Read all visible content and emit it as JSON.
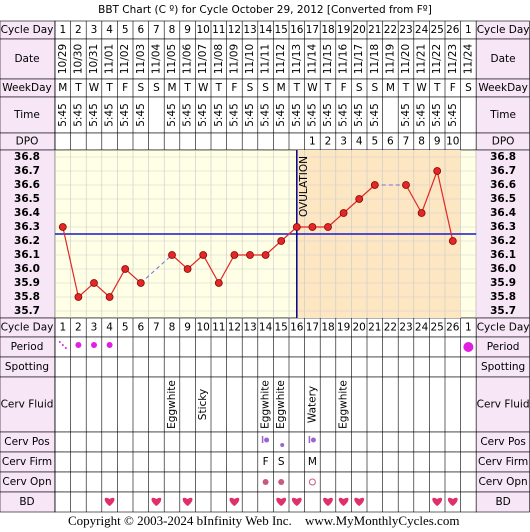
{
  "title": "BBT Chart (C º) for Cycle October 29, 2012  [Converted from Fº]",
  "row_labels": {
    "cycle_day": "Cycle Day",
    "date": "Date",
    "weekday": "WeekDay",
    "time": "Time",
    "dpo": "DPO",
    "period": "Period",
    "spotting": "Spotting",
    "cerv_fluid": "Cerv Fluid",
    "cerv_pos": "Cerv Pos",
    "cerv_firm": "Cerv Firm",
    "cerv_opn": "Cerv Opn",
    "bd": "BD"
  },
  "cycle_days": [
    1,
    2,
    3,
    4,
    5,
    6,
    7,
    8,
    9,
    10,
    11,
    12,
    13,
    14,
    15,
    16,
    17,
    18,
    19,
    20,
    21,
    22,
    23,
    24,
    25,
    26,
    1
  ],
  "dates": [
    "10/29",
    "10/30",
    "10/31",
    "11/01",
    "11/02",
    "11/03",
    "11/04",
    "11/05",
    "11/06",
    "11/07",
    "11/08",
    "11/09",
    "11/10",
    "11/11",
    "11/12",
    "11/13",
    "11/14",
    "11/15",
    "11/16",
    "11/17",
    "11/18",
    "11/19",
    "11/20",
    "11/21",
    "11/22",
    "11/23",
    "11/24"
  ],
  "weekdays": [
    "M",
    "T",
    "W",
    "T",
    "F",
    "S",
    "S",
    "M",
    "T",
    "W",
    "T",
    "F",
    "S",
    "S",
    "M",
    "T",
    "W",
    "T",
    "F",
    "S",
    "S",
    "M",
    "T",
    "W",
    "T",
    "F",
    "S"
  ],
  "times": [
    "5:45",
    "5:45",
    "5:45",
    "5:45",
    "5:45",
    "5:45",
    null,
    "5:45",
    "5:45",
    "5:45",
    "5:45",
    "5:45",
    "5:45",
    "5:45",
    "5:45",
    "5:45",
    "5:45",
    "5:45",
    "5:45",
    "5:45",
    "5:45",
    null,
    "5:45",
    "5:45",
    "5:45",
    "5:45",
    null
  ],
  "dpo": [
    null,
    null,
    null,
    null,
    null,
    null,
    null,
    null,
    null,
    null,
    null,
    null,
    null,
    null,
    null,
    null,
    1,
    2,
    3,
    4,
    5,
    6,
    7,
    8,
    9,
    10,
    null
  ],
  "chart_data": {
    "type": "line",
    "values": [
      36.3,
      35.8,
      35.9,
      35.8,
      36.0,
      35.9,
      null,
      36.1,
      36.0,
      36.1,
      35.9,
      36.1,
      36.1,
      36.1,
      36.2,
      36.3,
      36.3,
      36.3,
      36.4,
      36.5,
      36.6,
      null,
      36.6,
      36.4,
      36.7,
      36.2,
      null
    ],
    "color": "#e02828",
    "ylim": [
      35.65,
      36.85
    ],
    "yticks": [
      {
        "value": 36.8,
        "label": "36.8"
      },
      {
        "value": 36.7,
        "label": "36.7"
      },
      {
        "value": 36.6,
        "label": "36.6"
      },
      {
        "value": 36.5,
        "label": "36.5"
      },
      {
        "value": 36.4,
        "label": "36.4"
      },
      {
        "value": 36.3,
        "label": "36.3"
      },
      {
        "value": 36.2,
        "label": "36.2"
      },
      {
        "value": 36.1,
        "label": "36.1"
      },
      {
        "value": 36.0,
        "label": "36.0"
      },
      {
        "value": 35.9,
        "label": "35.9"
      },
      {
        "value": 35.8,
        "label": "35.8"
      },
      {
        "value": 35.7,
        "label": "35.7"
      }
    ],
    "coverline": 36.25,
    "ovulation": {
      "label": "OVULATION",
      "day": 16
    },
    "grid": true
  },
  "period": [
    "light",
    "medium",
    "medium",
    "medium",
    null,
    null,
    null,
    null,
    null,
    null,
    null,
    null,
    null,
    null,
    null,
    null,
    null,
    null,
    null,
    null,
    null,
    null,
    null,
    null,
    null,
    null,
    "heavy"
  ],
  "cerv_fluid": [
    null,
    null,
    null,
    null,
    null,
    null,
    null,
    "Eggwhite",
    null,
    "Sticky",
    null,
    null,
    null,
    "Eggwhite",
    "Eggwhite",
    null,
    "Watery",
    null,
    "Eggwhite",
    null,
    null,
    null,
    null,
    null,
    null,
    null,
    null
  ],
  "cerv_pos": [
    null,
    null,
    null,
    null,
    null,
    null,
    null,
    null,
    null,
    null,
    null,
    null,
    null,
    "high",
    "low",
    null,
    "high",
    null,
    null,
    null,
    null,
    null,
    null,
    null,
    null,
    null,
    null
  ],
  "cerv_firm": [
    null,
    null,
    null,
    null,
    null,
    null,
    null,
    null,
    null,
    null,
    null,
    null,
    null,
    "F",
    "S",
    null,
    "M",
    null,
    null,
    null,
    null,
    null,
    null,
    null,
    null,
    null,
    null
  ],
  "cerv_opn": [
    null,
    null,
    null,
    null,
    null,
    null,
    null,
    null,
    null,
    null,
    null,
    null,
    null,
    "closed",
    "closed",
    null,
    "open",
    null,
    null,
    null,
    null,
    null,
    null,
    null,
    null,
    null,
    null
  ],
  "bd": [
    false,
    false,
    false,
    true,
    false,
    false,
    true,
    false,
    true,
    false,
    false,
    true,
    false,
    false,
    true,
    true,
    false,
    true,
    true,
    true,
    false,
    false,
    false,
    false,
    true,
    true,
    false
  ],
  "footer": {
    "copyright": "Copyright © 2003-2024 bInfinity Web Inc.",
    "url": "www.MyMonthlyCycles.com"
  }
}
